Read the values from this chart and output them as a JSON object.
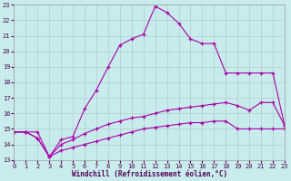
{
  "xlabel": "Windchill (Refroidissement éolien,°C)",
  "background_color": "#c8ecec",
  "grid_color": "#b0cccc",
  "line_color": "#aa00aa",
  "xlim": [
    0,
    23
  ],
  "ylim": [
    13,
    23
  ],
  "xticks": [
    0,
    1,
    2,
    3,
    4,
    5,
    6,
    7,
    8,
    9,
    10,
    11,
    12,
    13,
    14,
    15,
    16,
    17,
    18,
    19,
    20,
    21,
    22,
    23
  ],
  "yticks": [
    13,
    14,
    15,
    16,
    17,
    18,
    19,
    20,
    21,
    22,
    23
  ],
  "line1_x": [
    0,
    1,
    2,
    3,
    4,
    5,
    6,
    7,
    8,
    9,
    10,
    11,
    12,
    13,
    14,
    15,
    16,
    17,
    18,
    19,
    20,
    21,
    22,
    23
  ],
  "line1_y": [
    14.8,
    14.8,
    14.8,
    13.2,
    14.3,
    14.5,
    16.3,
    17.5,
    19.0,
    20.4,
    20.8,
    21.1,
    22.9,
    22.5,
    21.8,
    20.8,
    20.5,
    20.5,
    18.6,
    18.6,
    18.6,
    18.6,
    18.6,
    15.2
  ],
  "line2_x": [
    0,
    1,
    2,
    3,
    4,
    5,
    6,
    7,
    8,
    9,
    10,
    11,
    12,
    13,
    14,
    15,
    16,
    17,
    18,
    19,
    20,
    21,
    22,
    23
  ],
  "line2_y": [
    14.8,
    14.8,
    14.4,
    13.2,
    14.0,
    14.3,
    14.7,
    15.0,
    15.3,
    15.5,
    15.7,
    15.8,
    16.0,
    16.2,
    16.3,
    16.4,
    16.5,
    16.6,
    16.7,
    16.5,
    16.2,
    16.7,
    16.7,
    15.2
  ],
  "line3_x": [
    0,
    1,
    2,
    3,
    4,
    5,
    6,
    7,
    8,
    9,
    10,
    11,
    12,
    13,
    14,
    15,
    16,
    17,
    18,
    19,
    20,
    21,
    22,
    23
  ],
  "line3_y": [
    14.8,
    14.8,
    14.4,
    13.2,
    13.6,
    13.8,
    14.0,
    14.2,
    14.4,
    14.6,
    14.8,
    15.0,
    15.1,
    15.2,
    15.3,
    15.4,
    15.4,
    15.5,
    15.5,
    15.0,
    15.0,
    15.0,
    15.0,
    15.0
  ]
}
